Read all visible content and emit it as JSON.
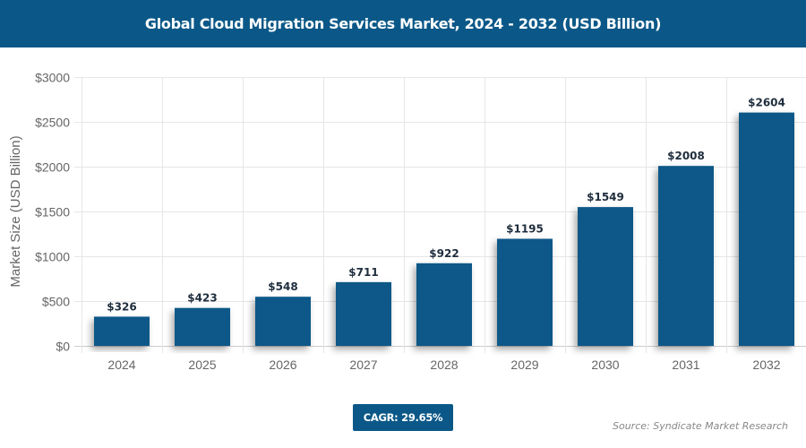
{
  "header": {
    "title": "Global Cloud Migration Services Market, 2024 - 2032 (USD Billion)"
  },
  "footer": {
    "cagr": "CAGR: 29.65%",
    "source": "Source: Syndicate Market Research"
  },
  "colors": {
    "bar": "#0b5888",
    "header": "#0b5888"
  },
  "chart_data": {
    "type": "bar",
    "title": "Global Cloud Migration Services Market, 2024 - 2032 (USD Billion)",
    "xlabel": "",
    "ylabel": "Market Size (USD Billion)",
    "categories": [
      "2024",
      "2025",
      "2026",
      "2027",
      "2028",
      "2029",
      "2030",
      "2031",
      "2032"
    ],
    "values": [
      326,
      423,
      548,
      711,
      922,
      1195,
      1549,
      2008,
      2604
    ],
    "data_labels": [
      "$326",
      "$423",
      "$548",
      "$711",
      "$922",
      "$1195",
      "$1549",
      "$2008",
      "$2604"
    ],
    "ylim": [
      0,
      3000
    ],
    "yticks": [
      0,
      500,
      1000,
      1500,
      2000,
      2500,
      3000
    ],
    "ytick_labels": [
      "$0",
      "$500",
      "$1000",
      "$1500",
      "$2000",
      "$2500",
      "$3000"
    ],
    "grid": true,
    "legend": "none"
  }
}
